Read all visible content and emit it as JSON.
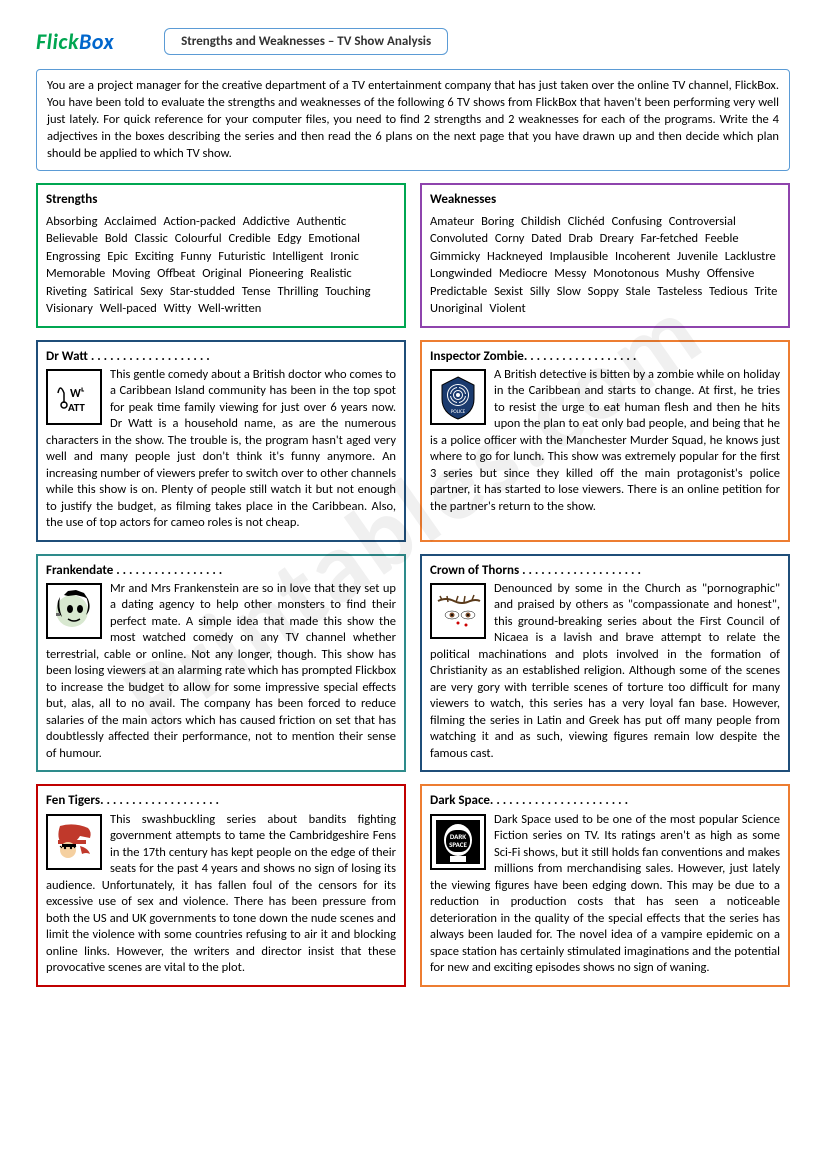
{
  "logo": {
    "part1": "Flick",
    "part2": "Box"
  },
  "title": "Strengths and Weaknesses – TV Show Analysis",
  "intro": "You are a project manager for the creative department of a TV entertainment company that has just taken over the online TV channel, FlickBox. You have been told to evaluate the strengths and weaknesses of the following 6 TV shows from FlickBox that haven't been performing very well just lately.  For quick reference for your computer files, you need to find 2 strengths and 2 weaknesses for each of the programs. Write the 4 adjectives in the boxes describing the series and then read the 6 plans on the next page that you have drawn up and then decide which plan should be applied to which TV show.",
  "strengths": {
    "heading": "Strengths",
    "words": "Absorbing Acclaimed Action-packed     Addictive   Authentic   Believable   Bold   Classic   Colourful   Credible   Edgy   Emotional       Engrossing Epic  Exciting   Funny    Futuristic Intelligent   Ironic Memorable Moving Offbeat Original     Pioneering  Realistic  Riveting Satirical Sexy Star-studded Tense  Thrilling             Touching   Visionary Well-paced  Witty          Well-written"
  },
  "weaknesses": {
    "heading": "Weaknesses",
    "words": "Amateur   Boring  Childish   Clichéd   Confusing Controversial      Convoluted   Corny   Dated Drab  Dreary Far-fetched  Feeble Gimmicky Hackneyed Implausible Incoherent Juvenile Lacklustre    Longwinded    Mediocre Messy  Monotonous Mushy      Offensive       Predictable  Sexist   Silly  Slow Soppy       Stale  Tasteless    Tedious  Trite    Unoriginal Violent"
  },
  "shows": [
    {
      "title": "Dr Watt",
      "dots": " . . . . . . . . . . . . . . . . . . .",
      "color": "navy",
      "icon": "watt",
      "text": "This gentle comedy about a British doctor who comes to a Caribbean Island community has been in the top spot for peak time family viewing for just over 6 years now. Dr Watt is a household name, as are the numerous characters in the show. The trouble is, the program hasn't aged very well and many people just don't think it's funny anymore. An increasing number of viewers prefer to switch over to other channels while this show is on. Plenty of people still watch it but not enough to justify the budget, as filming takes place in the Caribbean. Also, the use of top actors for cameo roles is not cheap."
    },
    {
      "title": "Inspector Zombie",
      "dots": ". . . . . . . . . . . . . . . . . .",
      "color": "orange",
      "icon": "zombie",
      "text": "A British detective is bitten by a zombie while on holiday in the Caribbean and starts to change. At first, he tries to resist the urge to eat human flesh and then he hits upon the plan to eat only bad people, and being that he is a police officer with the Manchester Murder Squad, he knows just where to go for lunch. This show was extremely popular for the first 3 series but since they killed off the main protagonist's police partner, it has started to lose viewers. There is an online petition for the partner's return to the show."
    },
    {
      "title": "Frankendate",
      "dots": " . . . . . . . . . . . . . . . . .",
      "color": "teal",
      "icon": "frank",
      "text": "Mr and Mrs Frankenstein are so in love that they set up a dating agency to help other monsters to find their perfect mate. A simple idea that made this show the most watched comedy on any TV channel whether terrestrial, cable or online. Not any longer, though. This show has been losing viewers at an alarming rate which has prompted Flickbox to increase the budget to allow for some impressive special effects but, alas, all to no avail. The company has been forced to reduce salaries of the main actors which has caused friction on set that has doubtlessly affected their performance, not to mention their sense of humour."
    },
    {
      "title": "Crown of Thorns",
      "dots": " . . . . . . . . . . . . . . . . . . .",
      "color": "navy",
      "icon": "thorns",
      "text": "Denounced by some in the Church as \"pornographic\" and praised by others as \"compassionate and honest\", this ground-breaking series about the First Council of Nicaea is a lavish and brave attempt to relate the political machinations and plots involved in the formation of Christianity as an established religion. Although some of the scenes are very gory with terrible scenes of torture too difficult for many viewers to watch, this series has a very loyal fan base. However, filming the series in Latin and Greek has put off many people from watching it and as such, viewing figures remain low despite the famous cast."
    },
    {
      "title": "Fen Tigers",
      "dots": ". . . . . . . . . . . . . . . . . . .",
      "color": "red",
      "icon": "tiger",
      "text": "This swashbuckling series about bandits fighting government attempts to tame the Cambridgeshire Fens in the 17th century has kept people on the edge of their seats for the past 4 years and shows no sign of losing its audience. Unfortunately, it has fallen foul of the censors for its excessive use of sex and violence. There has been pressure from both the US and UK governments to tone down the nude scenes and limit the violence with some countries refusing to air it and blocking online links. However, the writers and director insist that these provocative scenes are vital to the plot."
    },
    {
      "title": "Dark Space",
      "dots": ". . . . . . . . . . . . . . . . . . . . . .",
      "color": "orange",
      "icon": "space",
      "text": "Dark Space used to be one of the most popular Science Fiction series on TV. Its ratings aren't as high as some Sci-Fi shows, but it still holds fan conventions and makes millions from merchandising sales. However, just lately the viewing figures have been edging down. This may be due to a reduction in production costs that has seen a noticeable deterioration in the quality of the special effects that the series has always been lauded for. The novel idea of a vampire epidemic on a space station has certainly stimulated imaginations and the potential for new and exciting episodes shows no sign of waning."
    }
  ],
  "watermark": "Printables.com"
}
